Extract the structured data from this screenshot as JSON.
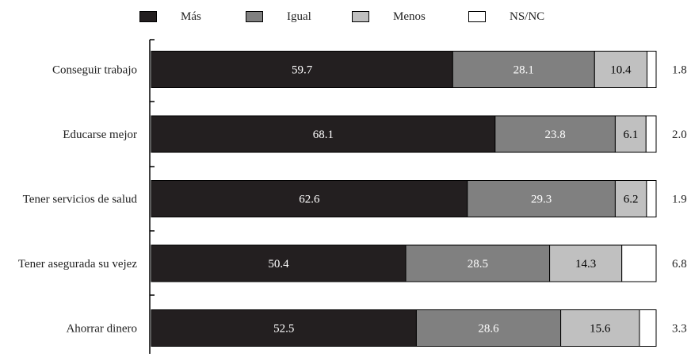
{
  "chart_data": {
    "type": "bar",
    "orientation": "horizontal",
    "stacked": true,
    "categories": [
      "Conseguir trabajo",
      "Educarse mejor",
      "Tener servicios de salud",
      "Tener asegurada su vejez",
      "Ahorrar dinero"
    ],
    "series": [
      {
        "name": "Más",
        "color": "#231f20",
        "label_color": "#ffffff",
        "values": [
          59.7,
          68.1,
          62.6,
          50.4,
          52.5
        ]
      },
      {
        "name": "Igual",
        "color": "#808080",
        "label_color": "#ffffff",
        "values": [
          28.1,
          23.8,
          29.3,
          28.5,
          28.6
        ]
      },
      {
        "name": "Menos",
        "color": "#c0c0c0",
        "label_color": "#000000",
        "values": [
          10.4,
          6.1,
          6.2,
          14.3,
          15.6
        ]
      },
      {
        "name": "NS/NC",
        "color": "#ffffff",
        "label_color": "#000000",
        "values": [
          1.8,
          2.0,
          1.9,
          6.8,
          3.3
        ]
      }
    ],
    "value_labels": [
      [
        "59.7",
        "28.1",
        "10.4",
        "1.8"
      ],
      [
        "68.1",
        "23.8",
        "6.1",
        "2.0"
      ],
      [
        "62.6",
        "29.3",
        "6.2",
        "1.9"
      ],
      [
        "50.4",
        "28.5",
        "14.3",
        "6.8"
      ],
      [
        "52.5",
        "28.6",
        "15.6",
        "3.3"
      ]
    ],
    "xlim": [
      0,
      100
    ],
    "legend_position": "top-center",
    "grid": false,
    "title": "",
    "xlabel": "",
    "ylabel": ""
  }
}
